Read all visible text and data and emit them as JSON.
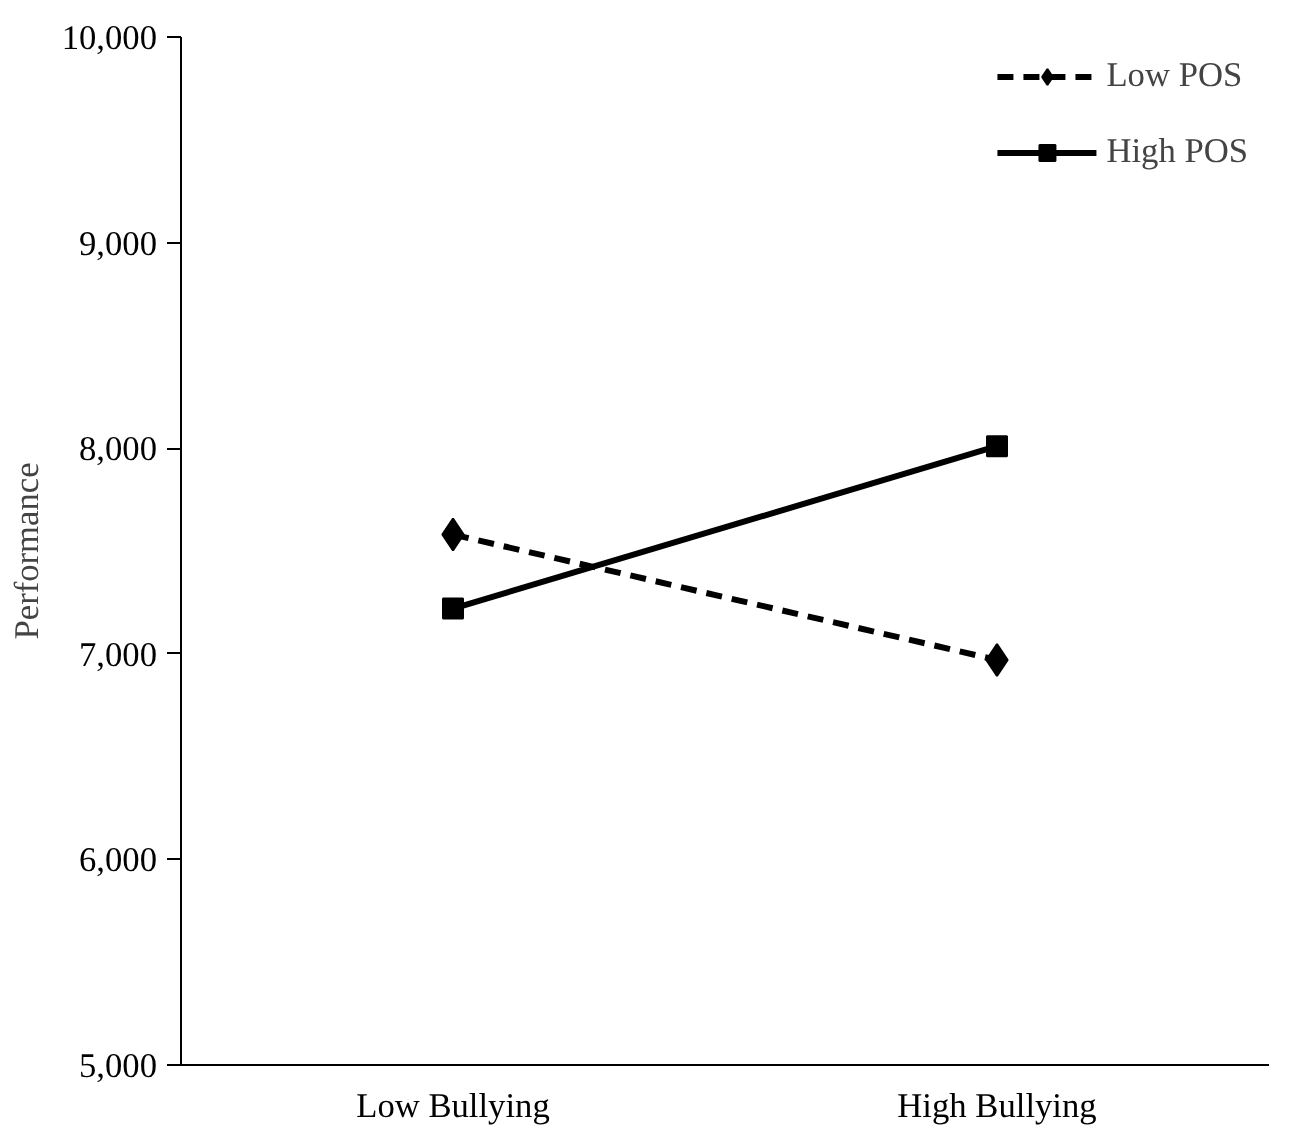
{
  "chart_data": {
    "type": "line",
    "ylabel": "Performance",
    "categories": [
      "Low Bullying",
      "High Bullying"
    ],
    "series": [
      {
        "name": "Low POS",
        "color": "#000000",
        "values": [
          7580,
          6970
        ],
        "line_style": "dashed",
        "marker": "diamond"
      },
      {
        "name": "High POS",
        "color": "#000000",
        "values": [
          7220,
          8010
        ],
        "line_style": "solid",
        "marker": "square"
      }
    ],
    "ylim": [
      5000,
      10000
    ],
    "yticks": [
      {
        "value": 5000,
        "label": "5,000"
      },
      {
        "value": 6000,
        "label": "6,000"
      },
      {
        "value": 7000,
        "label": "7,000"
      },
      {
        "value": 8000,
        "label": "8,000"
      },
      {
        "value": 9000,
        "label": "9,000"
      },
      {
        "value": 10000,
        "label": "10,000"
      }
    ],
    "legend": "top right"
  }
}
